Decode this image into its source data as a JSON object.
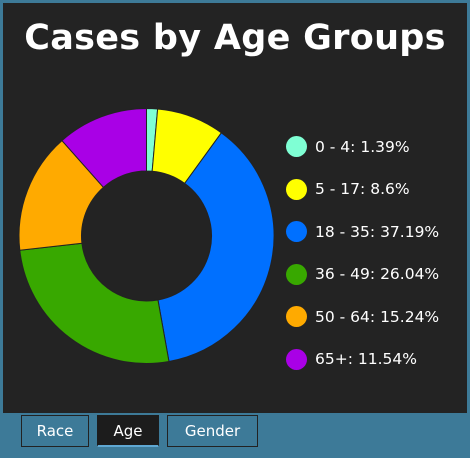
{
  "chart_data": {
    "type": "pie",
    "title": "Cases by Age Groups",
    "donut": true,
    "legend_position": "right",
    "categories": [
      "0 - 4",
      "5 - 17",
      "18 - 35",
      "36 - 49",
      "50 - 64",
      "65+"
    ],
    "values": [
      1.39,
      8.6,
      37.19,
      26.04,
      15.24,
      11.54
    ],
    "value_labels": [
      "1.39%",
      "8.6%",
      "37.19%",
      "26.04%",
      "15.24%",
      "11.54%"
    ],
    "colors": [
      "#7fffd4",
      "#ffff00",
      "#0070ff",
      "#38a800",
      "#ffaa00",
      "#a900e6"
    ]
  },
  "tabs": [
    {
      "label": "Race",
      "active": false
    },
    {
      "label": "Age",
      "active": true
    },
    {
      "label": "Gender",
      "active": false
    }
  ]
}
